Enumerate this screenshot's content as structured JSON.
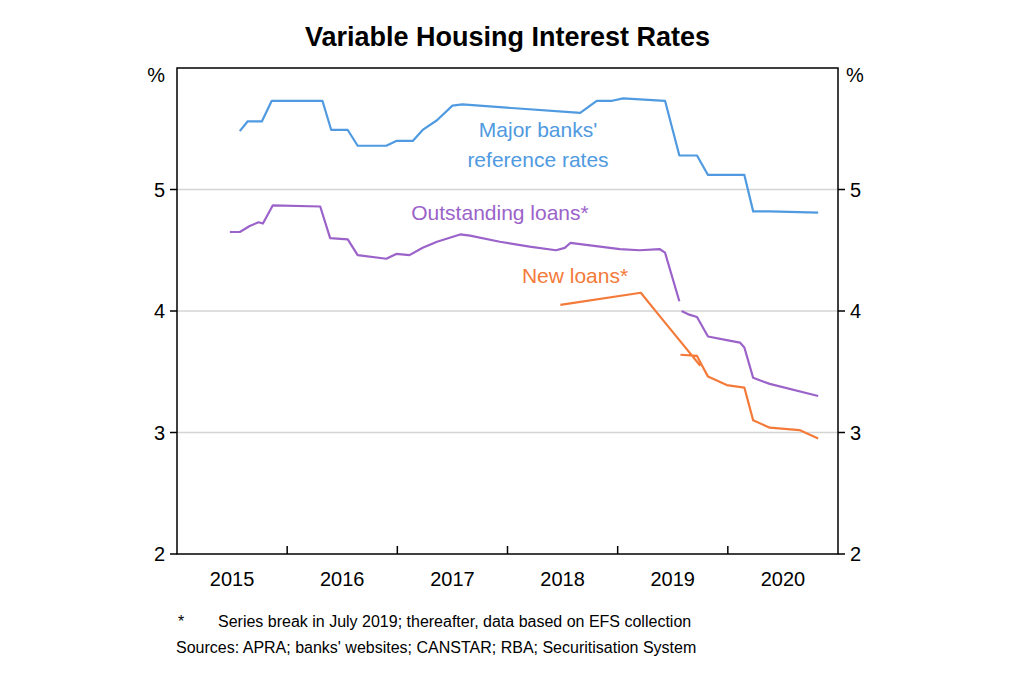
{
  "chart_data": {
    "type": "line",
    "title": "Variable Housing Interest Rates",
    "ylabel": "%",
    "xlim": [
      2015,
      2021
    ],
    "xticks": [
      {
        "value": 2015.5,
        "label": "2015"
      },
      {
        "value": 2016.5,
        "label": "2016"
      },
      {
        "value": 2017.5,
        "label": "2017"
      },
      {
        "value": 2018.5,
        "label": "2018"
      },
      {
        "value": 2019.5,
        "label": "2019"
      },
      {
        "value": 2020.5,
        "label": "2020"
      }
    ],
    "ylim": [
      2,
      6
    ],
    "yticks": [
      2,
      3,
      4,
      5
    ],
    "grid": true,
    "series": [
      {
        "name": "Major banks' reference rates",
        "color": "#4f9ae0",
        "x": [
          2015.57,
          2015.64,
          2015.77,
          2015.86,
          2016.32,
          2016.4,
          2016.55,
          2016.64,
          2016.9,
          2016.99,
          2017.14,
          2017.23,
          2017.36,
          2017.5,
          2017.59,
          2018.66,
          2018.81,
          2018.95,
          2019.05,
          2019.43,
          2019.56,
          2019.72,
          2019.82,
          2020.15,
          2020.23,
          2020.38,
          2020.82
        ],
        "values": [
          5.48,
          5.56,
          5.56,
          5.73,
          5.73,
          5.49,
          5.49,
          5.36,
          5.36,
          5.4,
          5.4,
          5.49,
          5.57,
          5.69,
          5.7,
          5.63,
          5.73,
          5.73,
          5.75,
          5.73,
          5.28,
          5.28,
          5.12,
          5.12,
          4.82,
          4.82,
          4.81
        ]
      },
      {
        "name": "Outstanding loans*",
        "color": "#9b63c9",
        "x": [
          2015.48,
          2015.57,
          2015.66,
          2015.74,
          2015.78,
          2015.87,
          2016.3,
          2016.39,
          2016.55,
          2016.64,
          2016.9,
          2016.99,
          2017.11,
          2017.23,
          2017.36,
          2017.57,
          2017.66,
          2017.93,
          2018.2,
          2018.44,
          2018.52,
          2018.57,
          2018.66,
          2018.84,
          2019.02,
          2019.2,
          2019.38,
          2019.43,
          2019.56,
          2019.57,
          2019.58,
          2019.65,
          2019.72,
          2019.82,
          2019.99,
          2020.11,
          2020.15,
          2020.23,
          2020.38,
          2020.82
        ],
        "values": [
          4.65,
          4.65,
          4.7,
          4.73,
          4.72,
          4.87,
          4.86,
          4.6,
          4.59,
          4.46,
          4.43,
          4.47,
          4.46,
          4.52,
          4.57,
          4.63,
          4.62,
          4.57,
          4.53,
          4.5,
          4.52,
          4.56,
          4.55,
          4.53,
          4.51,
          4.5,
          4.51,
          4.48,
          4.08,
          null,
          4.0,
          3.97,
          3.95,
          3.79,
          3.76,
          3.74,
          3.7,
          3.45,
          3.4,
          3.3
        ]
      },
      {
        "name": "New loans*",
        "color": "#f47a3a",
        "x": [
          2018.48,
          2019.21,
          2019.38,
          2019.56,
          2019.75,
          2019.76,
          2019.57,
          2019.72,
          2019.82,
          2019.99,
          2020.15,
          2020.23,
          2020.38,
          2020.65,
          2020.82
        ],
        "values": [
          4.05,
          4.15,
          3.96,
          3.76,
          3.55,
          null,
          3.64,
          3.63,
          3.46,
          3.39,
          3.37,
          3.1,
          3.04,
          3.02,
          2.95
        ]
      }
    ],
    "note_marker": "*",
    "note": "Series break in July 2019; thereafter, data based on EFS collection",
    "source": "Sources: APRA; banks' websites; CANSTAR; RBA; Securitisation System"
  }
}
